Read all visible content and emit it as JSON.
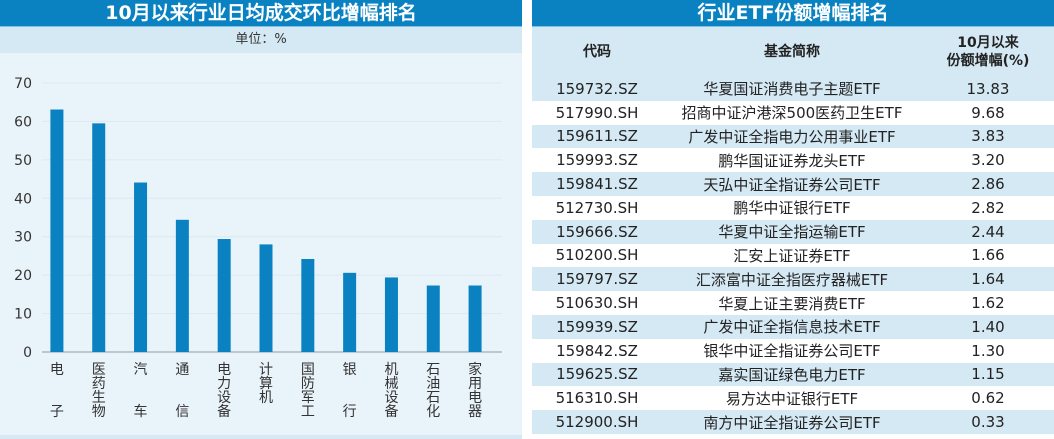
{
  "chart_data": {
    "type": "bar",
    "title": "10月以来行业日均成交环比增幅排名",
    "unit_label": "单位：%",
    "categories": [
      "电子",
      "医药生物",
      "汽车",
      "通信",
      "电力设备",
      "计算机",
      "国防军工",
      "银行",
      "机械设备",
      "石油石化",
      "家用电器"
    ],
    "values": [
      63.1,
      59.5,
      44.1,
      34.4,
      29.4,
      28.0,
      24.2,
      20.6,
      19.4,
      17.3,
      17.3
    ],
    "ylim": [
      0,
      70
    ],
    "yticks": [
      "0",
      "10",
      "20",
      "30",
      "40",
      "50",
      "60",
      "70"
    ],
    "grid": true,
    "bar_color": "#0a82c2"
  },
  "table": {
    "title": "行业ETF份额增幅排名",
    "headers": [
      "代码",
      "基金简称",
      "10月以来\n份额增幅(%)"
    ],
    "header_line1": "10月以来",
    "header_line2": "份额增幅(%)",
    "rows": [
      [
        "159732.SZ",
        "华夏国证消费电子主题ETF",
        "13.83"
      ],
      [
        "517990.SH",
        "招商中证沪港深500医药卫生ETF",
        "9.68"
      ],
      [
        "159611.SZ",
        "广发中证全指电力公用事业ETF",
        "3.83"
      ],
      [
        "159993.SZ",
        "鹏华国证证券龙头ETF",
        "3.20"
      ],
      [
        "159841.SZ",
        "天弘中证全指证券公司ETF",
        "2.86"
      ],
      [
        "512730.SH",
        "鹏华中证银行ETF",
        "2.82"
      ],
      [
        "159666.SZ",
        "华夏中证全指运输ETF",
        "2.44"
      ],
      [
        "510200.SH",
        "汇安上证证券ETF",
        "1.66"
      ],
      [
        "159797.SZ",
        "汇添富中证全指医疗器械ETF",
        "1.64"
      ],
      [
        "510630.SH",
        "华夏上证主要消费ETF",
        "1.62"
      ],
      [
        "159939.SZ",
        "广发中证全指信息技术ETF",
        "1.40"
      ],
      [
        "159842.SZ",
        "银华中证全指证券公司ETF",
        "1.30"
      ],
      [
        "159625.SZ",
        "嘉实国证绿色电力ETF",
        "1.15"
      ],
      [
        "516310.SH",
        "易方达中证银行ETF",
        "0.62"
      ],
      [
        "512900.SH",
        "南方中证全指证券公司ETF",
        "0.33"
      ]
    ]
  }
}
